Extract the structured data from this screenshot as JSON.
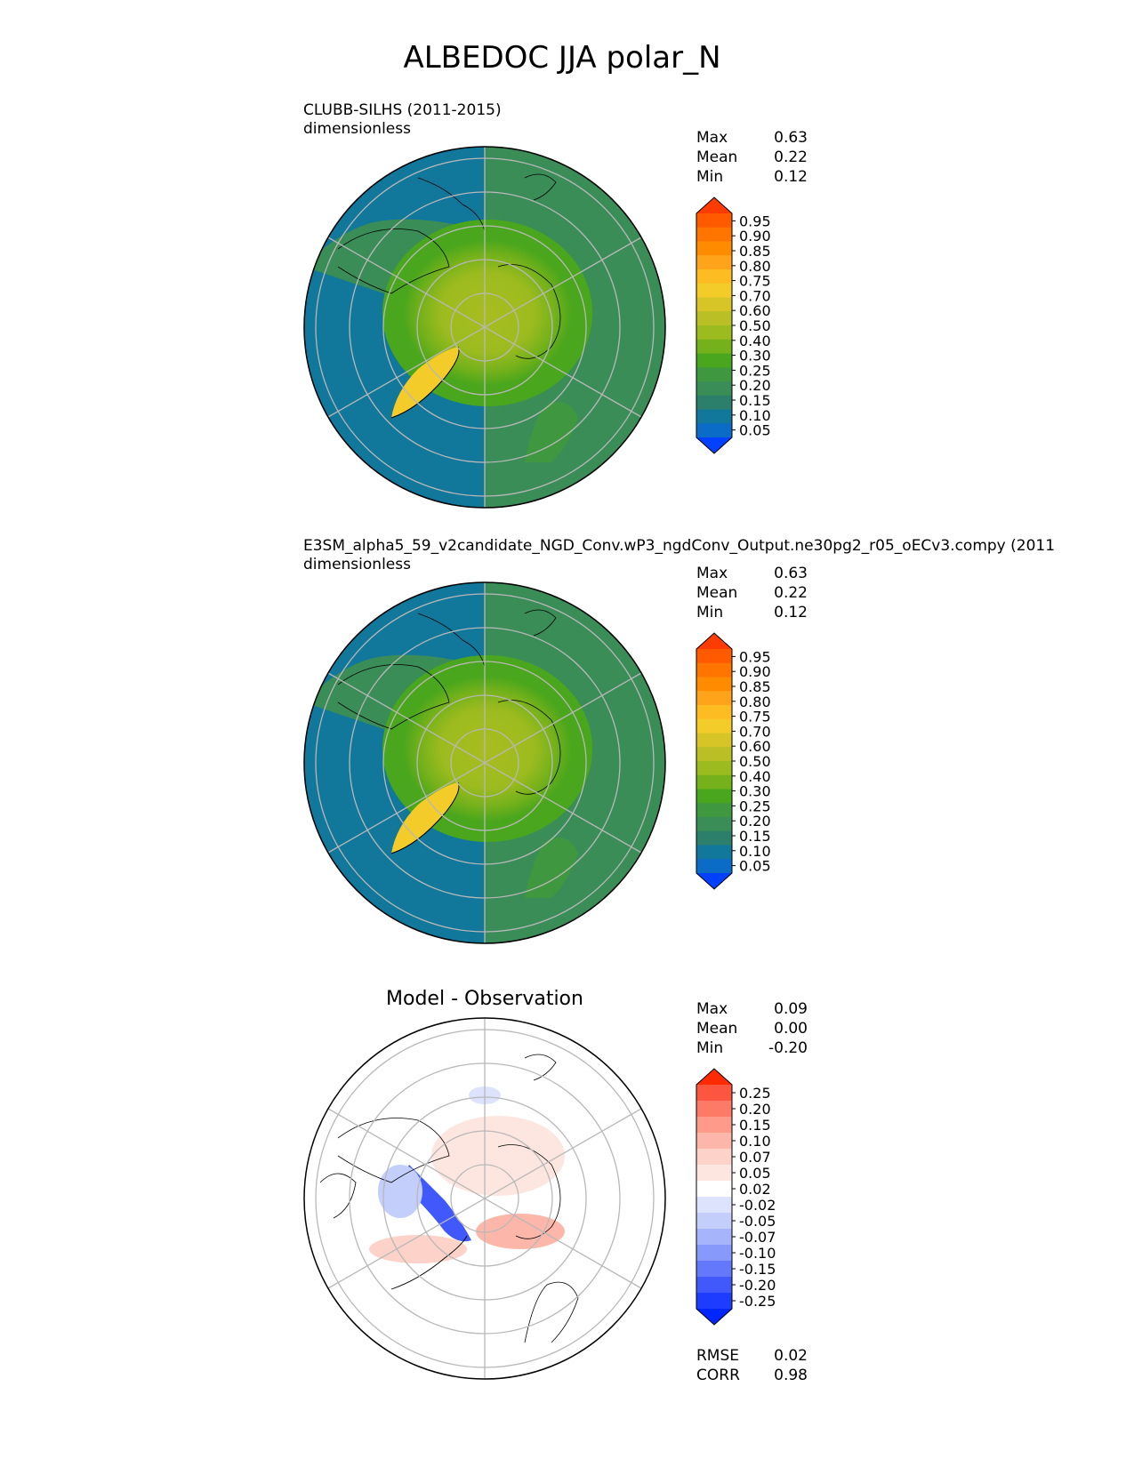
{
  "title": "ALBEDOC JJA polar_N",
  "panels": [
    {
      "id": "test",
      "title_line1": "CLUBB-SILHS (2011-2015)",
      "title_line2": "dimensionless",
      "stats": [
        {
          "label": "Max",
          "value": "0.63"
        },
        {
          "label": "Mean",
          "value": "0.22"
        },
        {
          "label": "Min",
          "value": "0.12"
        }
      ],
      "colorbar": {
        "ticks": [
          "0.95",
          "0.90",
          "0.85",
          "0.80",
          "0.75",
          "0.70",
          "0.60",
          "0.50",
          "0.40",
          "0.30",
          "0.25",
          "0.20",
          "0.15",
          "0.10",
          "0.05"
        ],
        "colors": [
          "#fe3b00",
          "#ff5a00",
          "#ff7500",
          "#ff8c00",
          "#ffa41a",
          "#fcbc22",
          "#f4cc2a",
          "#d7c528",
          "#b9bf24",
          "#9cbb1f",
          "#74b11b",
          "#4aa61c",
          "#3f9840",
          "#3b8d58",
          "#2c7f6b",
          "#11779b",
          "#0b6cc8",
          "#0040ff"
        ]
      },
      "map_style": "full"
    },
    {
      "id": "ref",
      "title_line1": "E3SM_alpha5_59_v2candidate_NGD_Conv.wP3_ngdConv_Output.ne30pg2_r05_oECv3.compy (2011",
      "title_line2": "dimensionless",
      "stats": [
        {
          "label": "Max",
          "value": "0.63"
        },
        {
          "label": "Mean",
          "value": "0.22"
        },
        {
          "label": "Min",
          "value": "0.12"
        }
      ],
      "colorbar": {
        "ticks": [
          "0.95",
          "0.90",
          "0.85",
          "0.80",
          "0.75",
          "0.70",
          "0.60",
          "0.50",
          "0.40",
          "0.30",
          "0.25",
          "0.20",
          "0.15",
          "0.10",
          "0.05"
        ],
        "colors": [
          "#fe3b00",
          "#ff5a00",
          "#ff7500",
          "#ff8c00",
          "#ffa41a",
          "#fcbc22",
          "#f4cc2a",
          "#d7c528",
          "#b9bf24",
          "#9cbb1f",
          "#74b11b",
          "#4aa61c",
          "#3f9840",
          "#3b8d58",
          "#2c7f6b",
          "#11779b",
          "#0b6cc8",
          "#0040ff"
        ]
      },
      "map_style": "full"
    },
    {
      "id": "diff",
      "title_line1": "Model - Observation",
      "title_line2": "",
      "stats": [
        {
          "label": "Max",
          "value": "0.09"
        },
        {
          "label": "Mean",
          "value": "0.00"
        },
        {
          "label": "Min",
          "value": "-0.20"
        }
      ],
      "colorbar": {
        "ticks": [
          "0.25",
          "0.20",
          "0.15",
          "0.10",
          "0.07",
          "0.05",
          "0.02",
          "-0.02",
          "-0.05",
          "-0.07",
          "-0.10",
          "-0.15",
          "-0.20",
          "-0.25"
        ],
        "colors": [
          "#ff2a00",
          "#fd5640",
          "#fd7a66",
          "#fd9a8a",
          "#fdb7aa",
          "#fdd2c8",
          "#fde6e0",
          "#ffffff",
          "#dde3fc",
          "#c4cefb",
          "#a6b4fb",
          "#8799fa",
          "#6478fb",
          "#4159fb",
          "#1d3cff",
          "#0026ff"
        ]
      },
      "map_style": "diff",
      "extra_stats": [
        {
          "label": "RMSE",
          "value": "0.02"
        },
        {
          "label": "CORR",
          "value": "0.98"
        }
      ]
    }
  ]
}
